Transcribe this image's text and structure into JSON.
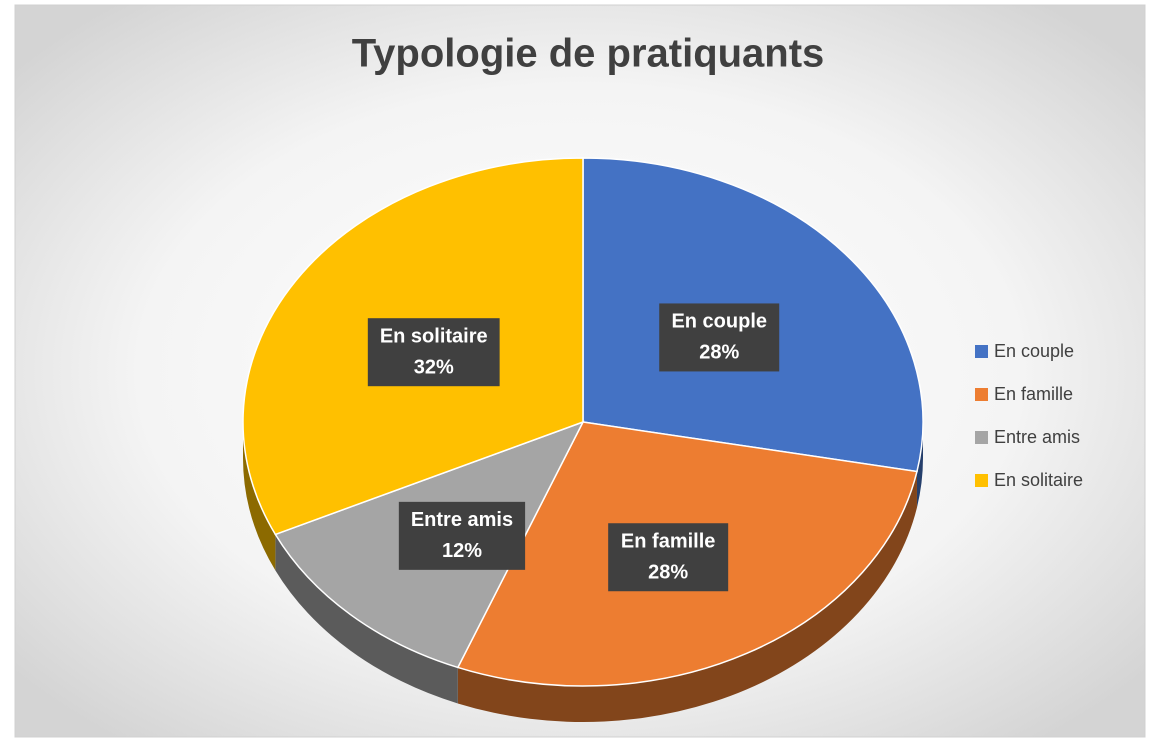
{
  "chart_data": {
    "type": "pie",
    "title": "Typologie de pratiquants",
    "categories": [
      "En couple",
      "En famille",
      "Entre amis",
      "En solitaire"
    ],
    "values": [
      28,
      28,
      12,
      32
    ],
    "value_labels": [
      "28%",
      "28%",
      "12%",
      "32%"
    ],
    "colors": [
      "#4472c4",
      "#ed7d31",
      "#a5a5a5",
      "#ffc000"
    ],
    "legend": "right"
  }
}
